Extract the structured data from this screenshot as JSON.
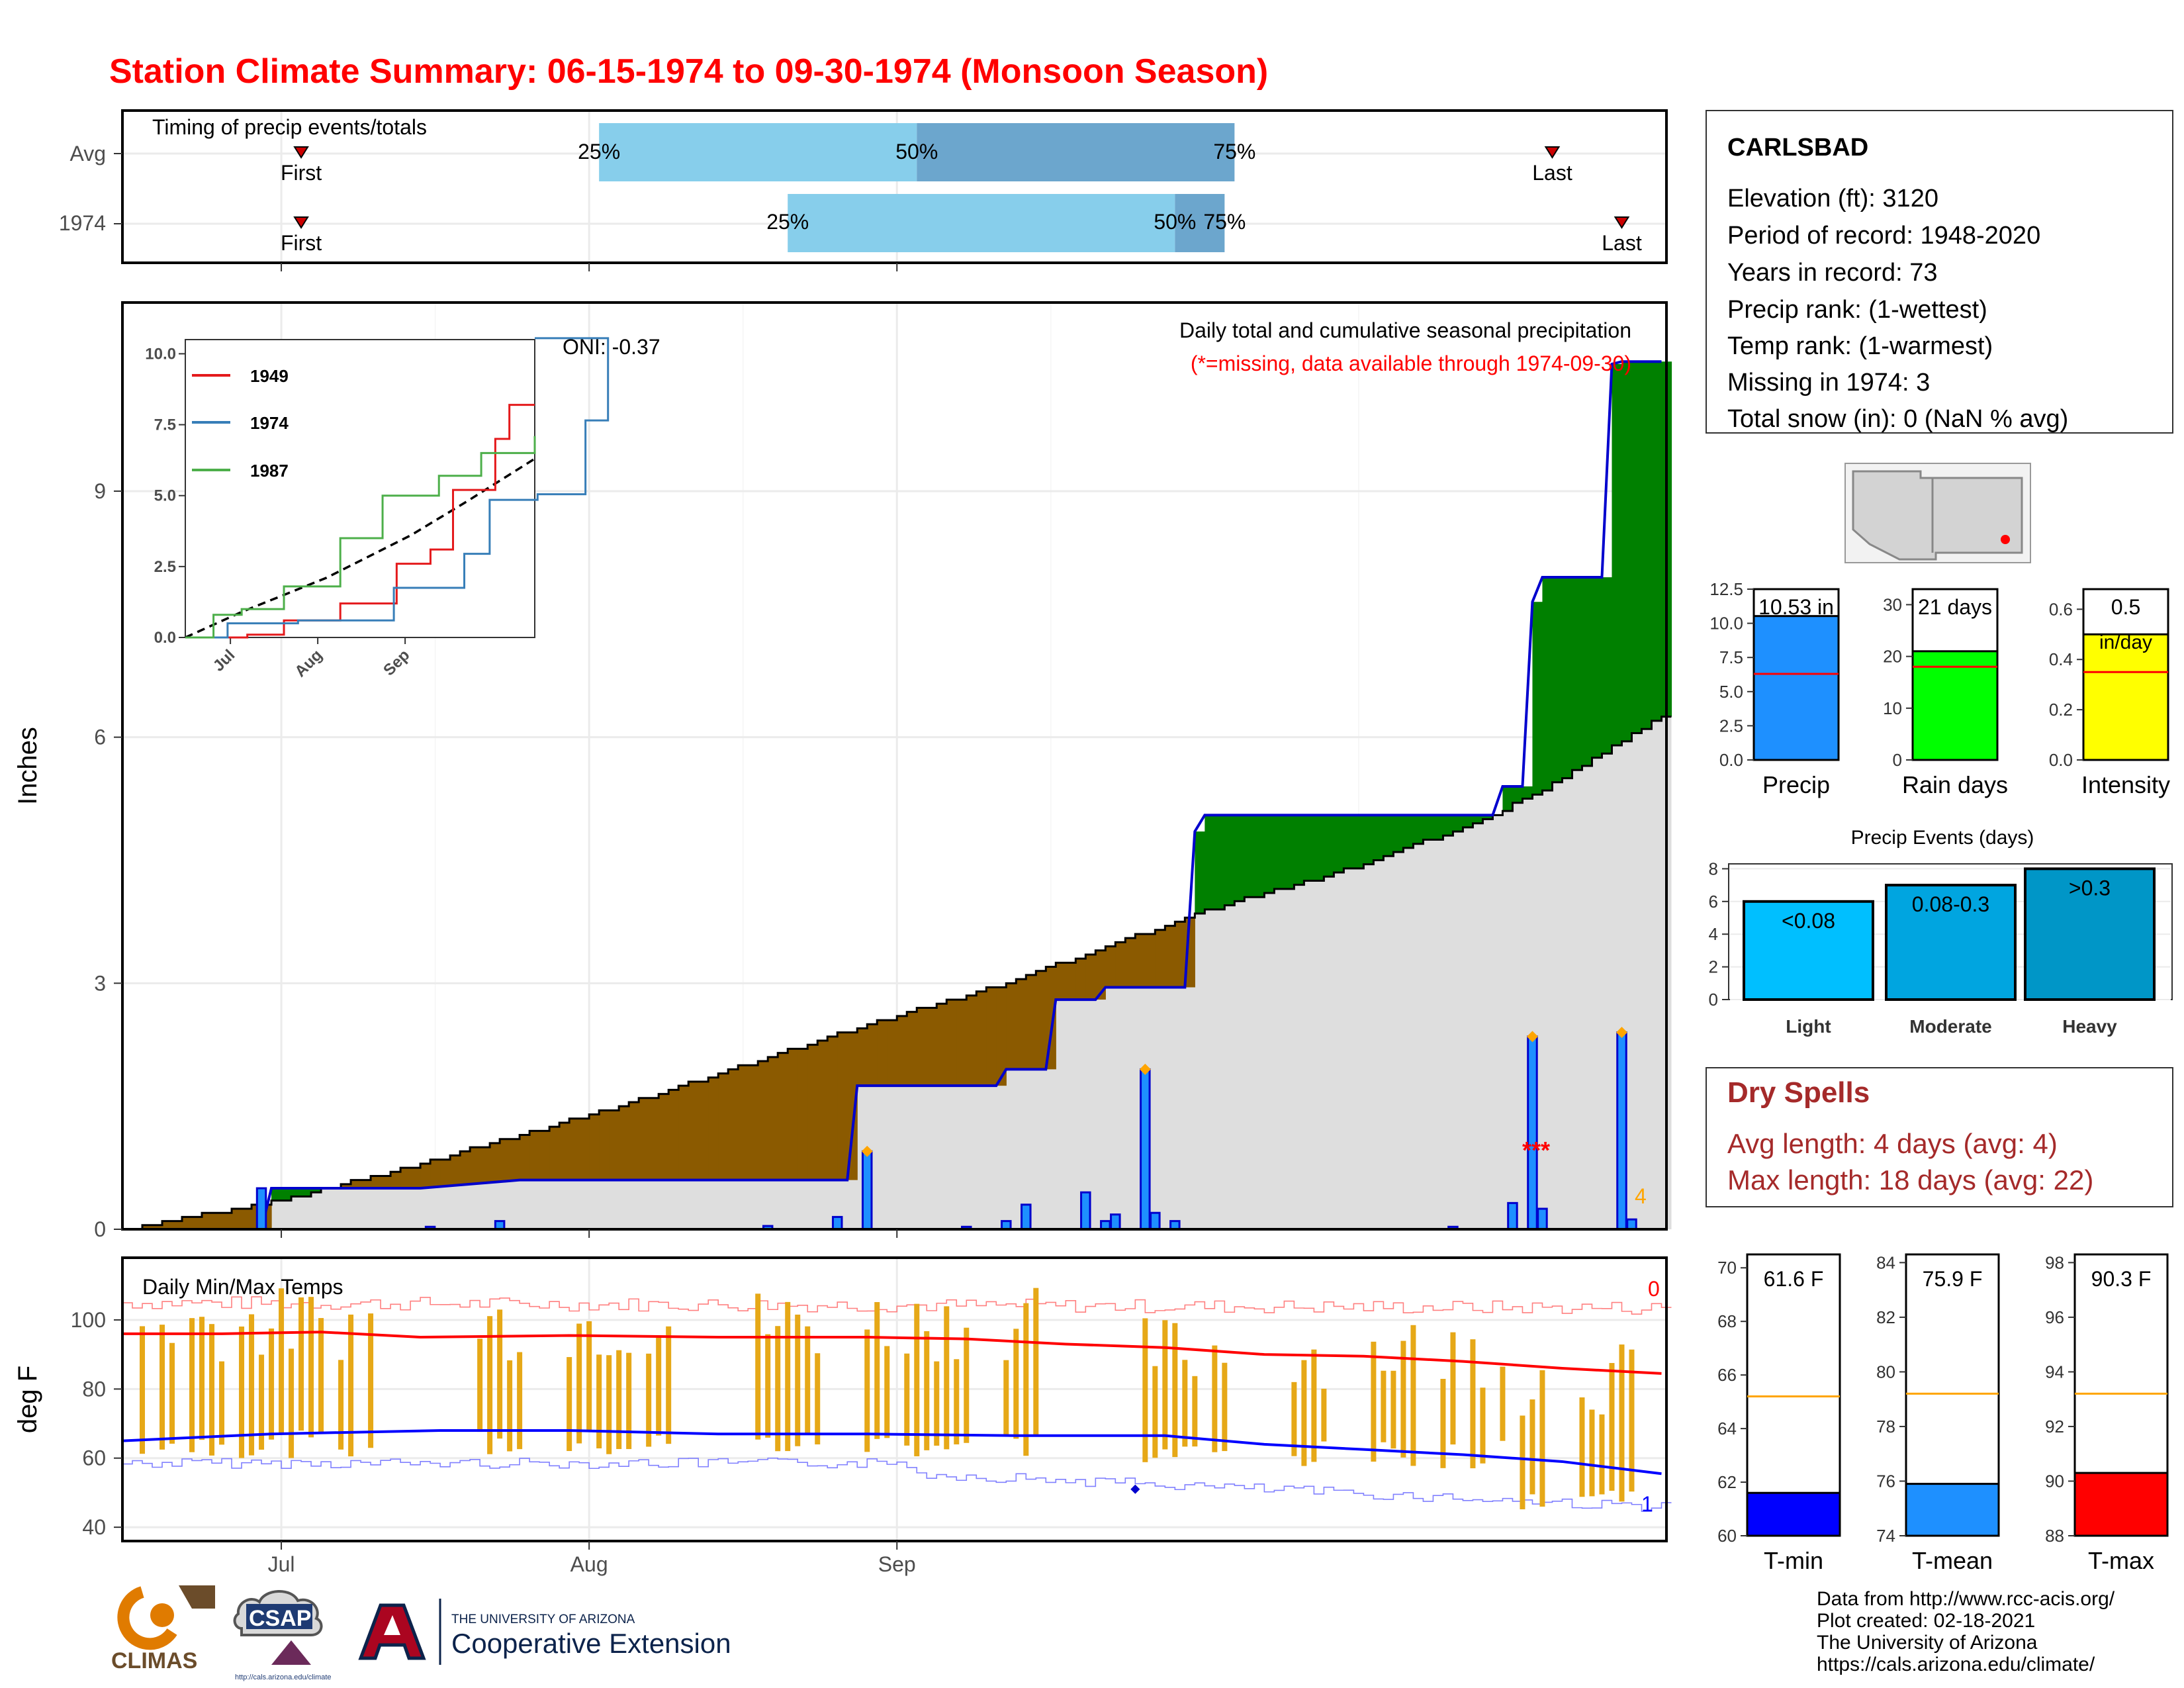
{
  "title": "Station Climate Summary: 06-15-1974 to 09-30-1974 (Monsoon Season)",
  "timing": {
    "label": "Timing of precip events/totals",
    "rows": [
      {
        "name": "Avg",
        "first_label": "First",
        "last_label": "Last",
        "p25_label": "25%",
        "p50_label": "50%",
        "p75_label": "75%",
        "first_day": 18,
        "p25_day": 48,
        "p50_day": 80,
        "p75_day": 112,
        "last_day": 144
      },
      {
        "name": "1974",
        "first_label": "First",
        "last_label": "Last",
        "p25_label": "25%",
        "p50_label": "50%",
        "p75_label": "75%",
        "first_day": 18,
        "p25_day": 67,
        "p50_day": 106,
        "p75_day": 111,
        "last_day": 151
      }
    ],
    "colors": {
      "outer": "#87CEEB",
      "inner": "#6CA6CD"
    }
  },
  "precip_panel": {
    "title": "Daily total and cumulative seasonal precipitation",
    "subtitle": "(*=missing, data available through 1974-09-30)",
    "oni": "ONI: -0.37",
    "ylabel": "Inches",
    "yticks": [
      "0",
      "3",
      "6",
      "9"
    ],
    "missing_marker": "***",
    "missing_count": "4"
  },
  "inset": {
    "yticks": [
      "0.0",
      "2.5",
      "5.0",
      "7.5",
      "10.0"
    ],
    "xticks": [
      "Jul",
      "Aug",
      "Sep"
    ],
    "legend": [
      {
        "label": "1949",
        "color": "#e41a1c"
      },
      {
        "label": "1974",
        "color": "#377eb8"
      },
      {
        "label": "1987",
        "color": "#4daf4a"
      }
    ]
  },
  "temp_panel": {
    "title": "Daily Min/Max Temps",
    "ylabel": "deg F",
    "yticks": [
      "40",
      "60",
      "80",
      "100"
    ],
    "count_max": "0",
    "count_min": "1"
  },
  "x_axis": {
    "ticks": [
      "Jul",
      "Aug",
      "Sep"
    ]
  },
  "station": {
    "name": "CARLSBAD",
    "lines": [
      "Elevation (ft): 3120",
      "Period of record: 1948-2020",
      "Years in record: 73",
      "Precip rank:  (1-wettest)",
      "Temp rank:  (1-warmest)",
      "Missing in 1974: 3",
      "Total snow (in): 0 (NaN % avg)"
    ]
  },
  "summary_bars": [
    {
      "label": "Precip",
      "value_label": "10.53 in",
      "value": 10.53,
      "avg": 6.3,
      "ymax": 12.5,
      "ticks": [
        "0.0",
        "2.5",
        "5.0",
        "7.5",
        "10.0",
        "12.5"
      ],
      "color": "#1E90FF"
    },
    {
      "label": "Rain days",
      "value_label": "21 days",
      "value": 21,
      "avg": 18,
      "ymax": 33,
      "ticks": [
        "0",
        "10",
        "20",
        "30"
      ],
      "color": "#00FF00"
    },
    {
      "label": "Intensity",
      "value_label": "0.5",
      "unit_label": "in/day",
      "value": 0.5,
      "avg": 0.35,
      "ymax": 0.68,
      "ticks": [
        "0.0",
        "0.2",
        "0.4",
        "0.6"
      ],
      "color": "#FFFF00"
    }
  ],
  "precip_events": {
    "title": "Precip Events (days)",
    "ticks": [
      "0",
      "2",
      "4",
      "6",
      "8"
    ],
    "bars": [
      {
        "label": "Light",
        "value_label": "<0.08",
        "value": 6,
        "color": "#00BFFF"
      },
      {
        "label": "Moderate",
        "value_label": "0.08-0.3",
        "value": 7,
        "color": "#00A5E0"
      },
      {
        "label": "Heavy",
        "value_label": ">0.3",
        "value": 8,
        "color": "#0096C7"
      }
    ]
  },
  "dry_spells": {
    "title": "Dry Spells",
    "avg_line": "Avg length: 4 days (avg: 4)",
    "max_line": "Max length: 18 days (avg: 22)",
    "color": "#A52A2A"
  },
  "temp_bars": [
    {
      "label": "T-min",
      "value_label": "61.6 F",
      "value": 61.6,
      "avg": 65.2,
      "ymin": 60,
      "ymax": 70.5,
      "ticks": [
        "60",
        "62",
        "64",
        "66",
        "68",
        "70"
      ],
      "color": "#0000FF"
    },
    {
      "label": "T-mean",
      "value_label": "75.9 F",
      "value": 75.9,
      "avg": 79.2,
      "ymin": 74,
      "ymax": 84.3,
      "ticks": [
        "74",
        "76",
        "78",
        "80",
        "82",
        "84"
      ],
      "color": "#1E90FF"
    },
    {
      "label": "T-max",
      "value_label": "90.3 F",
      "value": 90.3,
      "avg": 93.2,
      "ymin": 88,
      "ymax": 98.3,
      "ticks": [
        "88",
        "90",
        "92",
        "94",
        "96",
        "98"
      ],
      "color": "#FF0000"
    }
  ],
  "credits": [
    "Data from http://www.rcc-acis.org/",
    "Plot created: 02-18-2021",
    "The University of Arizona",
    "https://cals.arizona.edu/climate/"
  ],
  "logos": {
    "climas": "CLIMAS",
    "csap": "CSAP",
    "csap_url": "http://cals.arizona.edu/climate",
    "ua_small": "THE UNIVERSITY OF ARIZONA",
    "ua_big": "Cooperative Extension"
  },
  "chart_data": [
    {
      "type": "area",
      "title": "Daily total and cumulative seasonal precipitation",
      "ylabel": "Inches",
      "x_range": [
        "1974-06-15",
        "1974-09-30"
      ],
      "ylim": [
        0,
        10.9
      ],
      "series": [
        {
          "name": "cumulative 1974",
          "points": [
            [
              0,
              0
            ],
            [
              14,
              0
            ],
            [
              15,
              0.5
            ],
            [
              30,
              0.5
            ],
            [
              40,
              0.6
            ],
            [
              73,
              0.6
            ],
            [
              74,
              1.75
            ],
            [
              88,
              1.75
            ],
            [
              89,
              1.95
            ],
            [
              93,
              1.95
            ],
            [
              94,
              2.8
            ],
            [
              98,
              2.8
            ],
            [
              99,
              2.95
            ],
            [
              107,
              2.95
            ],
            [
              108,
              4.85
            ],
            [
              109,
              5.05
            ],
            [
              125,
              5.05
            ],
            [
              126,
              5.05
            ],
            [
              138,
              5.05
            ],
            [
              139,
              5.4
            ],
            [
              141,
              5.4
            ],
            [
              142,
              7.65
            ],
            [
              143,
              7.95
            ],
            [
              149,
              7.95
            ],
            [
              150,
              10.55
            ],
            [
              151,
              10.58
            ],
            [
              155,
              10.58
            ]
          ]
        },
        {
          "name": "cumulative avg",
          "points": [
            [
              0,
              0
            ],
            [
              15,
              0.33
            ],
            [
              30,
              0.8
            ],
            [
              50,
              1.5
            ],
            [
              70,
              2.3
            ],
            [
              90,
              3.05
            ],
            [
              107,
              3.8
            ],
            [
              108,
              3.85
            ],
            [
              125,
              4.45
            ],
            [
              138,
              5.05
            ],
            [
              145,
              5.5
            ],
            [
              155,
              6.25
            ]
          ]
        }
      ],
      "daily_bars": [
        [
          14,
          0.5
        ],
        [
          31,
          0.03
        ],
        [
          38,
          0.1
        ],
        [
          65,
          0.04
        ],
        [
          72,
          0.15
        ],
        [
          75,
          0.95
        ],
        [
          85,
          0.03
        ],
        [
          89,
          0.1
        ],
        [
          91,
          0.3
        ],
        [
          97,
          0.45
        ],
        [
          99,
          0.1
        ],
        [
          100,
          0.18
        ],
        [
          103,
          1.95
        ],
        [
          104,
          0.2
        ],
        [
          106,
          0.1
        ],
        [
          134,
          0.03
        ],
        [
          140,
          0.32
        ],
        [
          142,
          2.35
        ],
        [
          143,
          0.25
        ],
        [
          151,
          2.4
        ],
        [
          152,
          0.12
        ]
      ]
    },
    {
      "type": "line",
      "title": "Daily Min/Max Temps",
      "ylabel": "deg F",
      "ylim": [
        36,
        118
      ],
      "series": [
        {
          "name": "avg max",
          "points": [
            [
              0,
              96
            ],
            [
              10,
              96
            ],
            [
              20,
              96.5
            ],
            [
              30,
              95
            ],
            [
              45,
              95.5
            ],
            [
              60,
              95
            ],
            [
              75,
              95
            ],
            [
              85,
              94.5
            ],
            [
              95,
              93
            ],
            [
              105,
              92
            ],
            [
              115,
              90
            ],
            [
              125,
              89.5
            ],
            [
              135,
              88
            ],
            [
              145,
              86
            ],
            [
              155,
              84.5
            ]
          ]
        },
        {
          "name": "avg min",
          "points": [
            [
              0,
              65
            ],
            [
              15,
              67
            ],
            [
              32,
              68
            ],
            [
              45,
              68
            ],
            [
              60,
              67
            ],
            [
              75,
              67
            ],
            [
              90,
              66.5
            ],
            [
              105,
              66.5
            ],
            [
              115,
              64
            ],
            [
              125,
              62.5
            ],
            [
              135,
              61
            ],
            [
              145,
              59
            ],
            [
              155,
              55.5
            ]
          ]
        }
      ]
    },
    {
      "type": "line",
      "title": "Cumulative precipitation (top years)",
      "x": [
        "Jul",
        "Aug",
        "Sep"
      ],
      "ylim": [
        0,
        10.5
      ],
      "series": [
        {
          "name": "1949",
          "points": [
            [
              0,
              0
            ],
            [
              22,
              0.1
            ],
            [
              35,
              0.6
            ],
            [
              55,
              1.2
            ],
            [
              75,
              2.6
            ],
            [
              87,
              3.1
            ],
            [
              95,
              5.2
            ],
            [
              110,
              7.0
            ],
            [
              115,
              8.2
            ],
            [
              124,
              8.2
            ]
          ]
        },
        {
          "name": "1974",
          "points": [
            [
              0,
              0
            ],
            [
              15,
              0.5
            ],
            [
              40,
              0.6
            ],
            [
              74,
              1.75
            ],
            [
              99,
              2.95
            ],
            [
              108,
              4.85
            ],
            [
              125,
              5.05
            ],
            [
              142,
              7.65
            ],
            [
              150,
              10.55
            ]
          ]
        },
        {
          "name": "1987",
          "points": [
            [
              0,
              0
            ],
            [
              10,
              0.8
            ],
            [
              20,
              1.0
            ],
            [
              35,
              1.8
            ],
            [
              55,
              3.5
            ],
            [
              70,
              5.0
            ],
            [
              90,
              5.7
            ],
            [
              105,
              6.5
            ],
            [
              124,
              7.1
            ]
          ]
        }
      ]
    }
  ]
}
